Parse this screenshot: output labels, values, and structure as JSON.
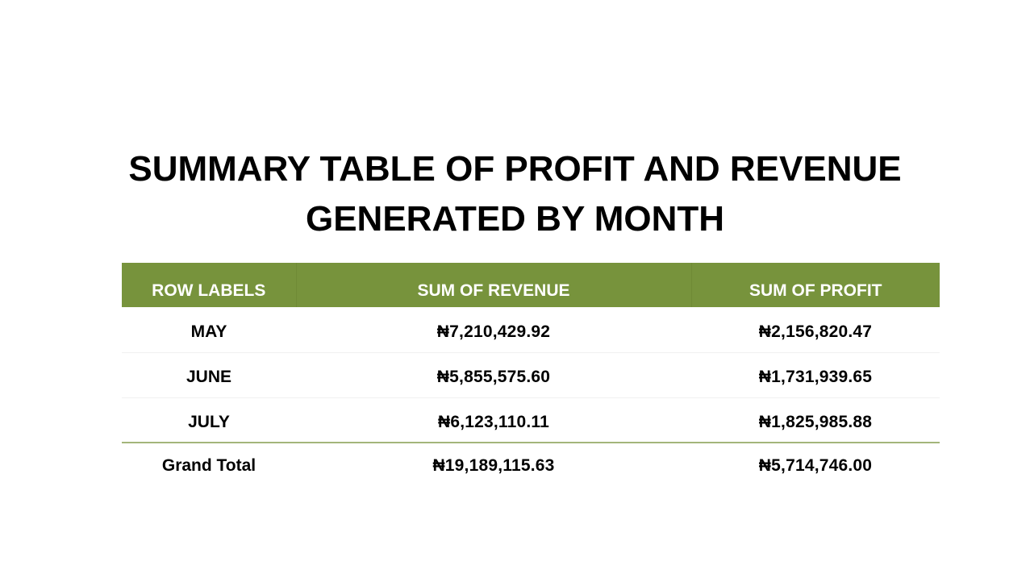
{
  "title": {
    "line1": "SUMMARY TABLE OF PROFIT AND REVENUE",
    "line2": "GENERATED BY MONTH"
  },
  "table": {
    "headers": [
      "ROW LABELS",
      "SUM OF REVENUE",
      "SUM OF PROFIT"
    ],
    "rows": [
      {
        "label": "MAY",
        "revenue": "₦7,210,429.92",
        "profit": "₦2,156,820.47"
      },
      {
        "label": "JUNE",
        "revenue": "₦5,855,575.60",
        "profit": "₦1,731,939.65"
      },
      {
        "label": "JULY",
        "revenue": "₦6,123,110.11",
        "profit": "₦1,825,985.88"
      }
    ],
    "total": {
      "label": "Grand Total",
      "revenue": "₦19,189,115.63",
      "profit": "₦5,714,746.00"
    }
  },
  "colors": {
    "header_bg": "#77933c",
    "header_text": "#ffffff",
    "divider": "#a3b57a"
  }
}
